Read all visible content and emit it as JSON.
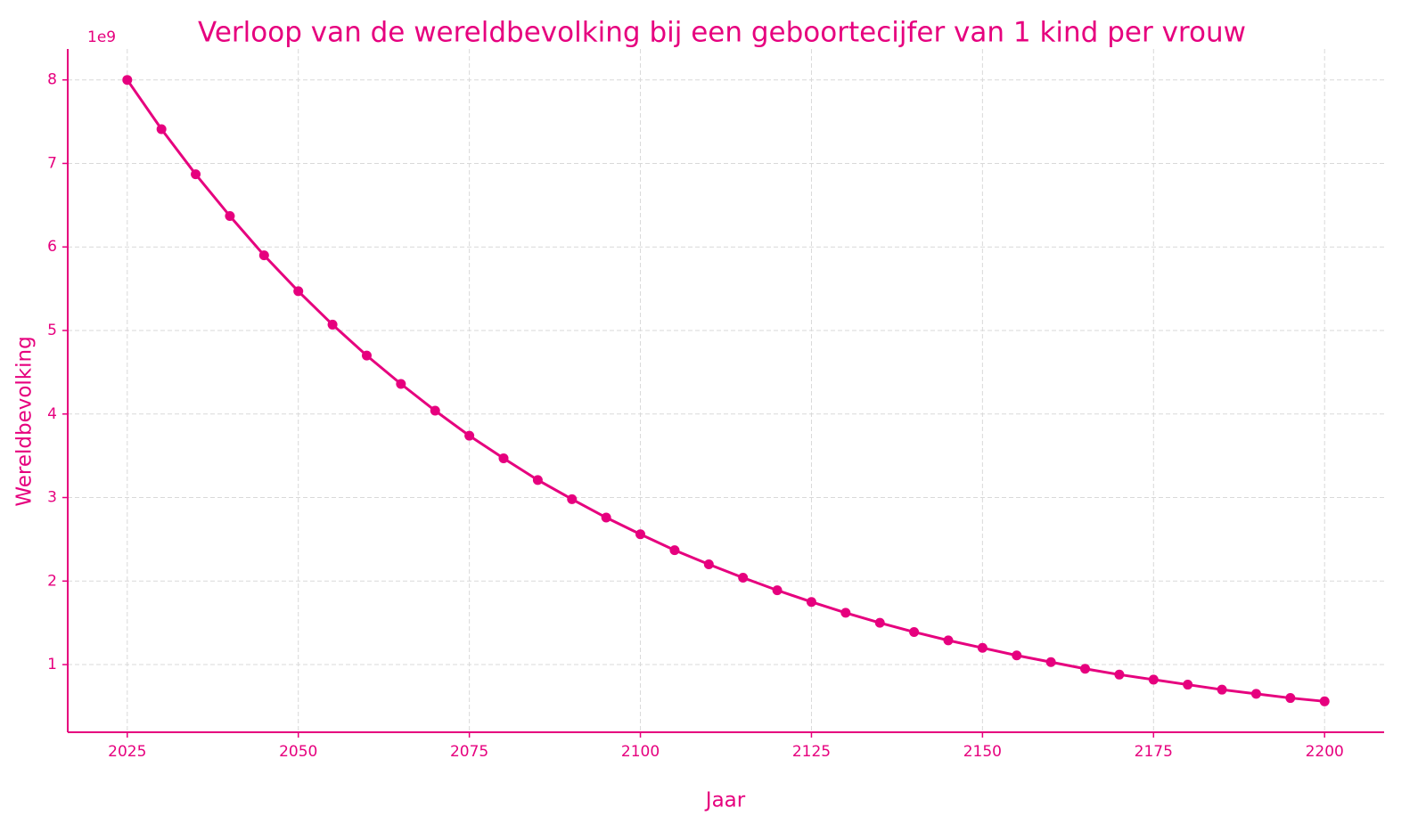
{
  "chart_data": {
    "type": "line",
    "title": "Verloop van de wereldbevolking bij een geboortecijfer van 1 kind per vrouw",
    "x_label": "Jaar",
    "y_label": "Wereldbevolking",
    "y_offset_label": "1e9",
    "x": [
      2025,
      2030,
      2035,
      2040,
      2045,
      2050,
      2055,
      2060,
      2065,
      2070,
      2075,
      2080,
      2085,
      2090,
      2095,
      2100,
      2105,
      2110,
      2115,
      2120,
      2125,
      2130,
      2135,
      2140,
      2145,
      2150,
      2155,
      2160,
      2165,
      2170,
      2175,
      2180,
      2185,
      2190,
      2195,
      2200
    ],
    "values": [
      8,
      7.41,
      6.87,
      6.37,
      5.9,
      5.47,
      5.07,
      4.7,
      4.36,
      4.04,
      3.74,
      3.47,
      3.21,
      2.98,
      2.76,
      2.56,
      2.37,
      2.2,
      2.04,
      1.89,
      1.75,
      1.62,
      1.5,
      1.39,
      1.29,
      1.2,
      1.11,
      1.03,
      0.95,
      0.88,
      0.82,
      0.76,
      0.7,
      0.65,
      0.6,
      0.56
    ],
    "color": "#e6007e",
    "xlim": [
      2016.3,
      2208.7
    ],
    "xticks": [
      2025,
      2050,
      2075,
      2100,
      2125,
      2150,
      2175,
      2200
    ],
    "ylim": [
      0.19,
      8.37
    ],
    "yticks": [
      1,
      2,
      3,
      4,
      5,
      6,
      7,
      8
    ],
    "grid": true
  }
}
